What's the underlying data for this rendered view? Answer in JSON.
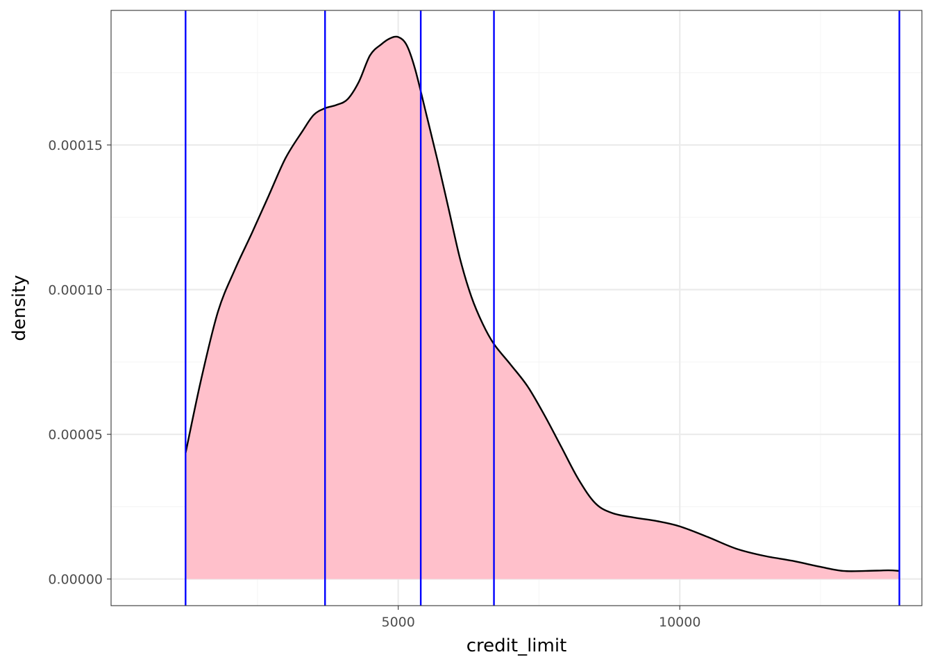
{
  "chart_data": {
    "type": "area",
    "xlabel": "credit_limit",
    "ylabel": "density",
    "xlim": [
      -100,
      14300
    ],
    "ylim": [
      -9.2e-06,
      0.0001965
    ],
    "grid": true,
    "x_ticks": [
      5000,
      10000
    ],
    "x_tick_labels": [
      "5000",
      "10000"
    ],
    "y_ticks": [
      0,
      5e-05,
      0.0001,
      0.00015
    ],
    "y_tick_labels": [
      "0.00000",
      "0.00005",
      "0.00010",
      "0.00015"
    ],
    "series": [
      {
        "x": [
          1223,
          1500,
          1800,
          2100,
          2400,
          2700,
          3000,
          3300,
          3500,
          3700,
          3900,
          4100,
          4300,
          4500,
          4700,
          4850,
          5000,
          5150,
          5300,
          5500,
          5700,
          5900,
          6100,
          6300,
          6500,
          6700,
          7000,
          7300,
          7600,
          7900,
          8200,
          8500,
          8800,
          9200,
          9600,
          10000,
          10500,
          11000,
          11500,
          12000,
          12500,
          12900,
          13300,
          13700,
          13900
        ],
        "y": [
          4.35e-05,
          6.9e-05,
          9.25e-05,
          0.000107,
          0.0001195,
          0.0001325,
          0.0001455,
          0.0001548,
          0.0001604,
          0.0001627,
          0.0001638,
          0.0001658,
          0.0001718,
          0.000181,
          0.0001848,
          0.0001868,
          0.0001873,
          0.0001845,
          0.0001762,
          0.0001605,
          0.0001445,
          0.0001275,
          0.0001105,
          9.75e-05,
          8.82e-05,
          8.12e-05,
          7.4e-05,
          6.65e-05,
          5.65e-05,
          4.55e-05,
          3.45e-05,
          2.62e-05,
          2.28e-05,
          2.12e-05,
          2e-05,
          1.82e-05,
          1.45e-05,
          1.05e-05,
          8e-06,
          6.3e-06,
          4.2e-06,
          2.8e-06,
          2.8e-06,
          3e-06,
          2.8e-06
        ]
      }
    ],
    "vlines": [
      1223,
      3700,
      5400,
      6700,
      13900
    ],
    "colors": {
      "fill": "#FFC0CB",
      "line": "#000000",
      "vline": "#0000FF",
      "grid_major": "#ebebeb",
      "grid_minor": "#f5f5f5",
      "panel_border": "#333333",
      "tick": "#333333"
    }
  }
}
